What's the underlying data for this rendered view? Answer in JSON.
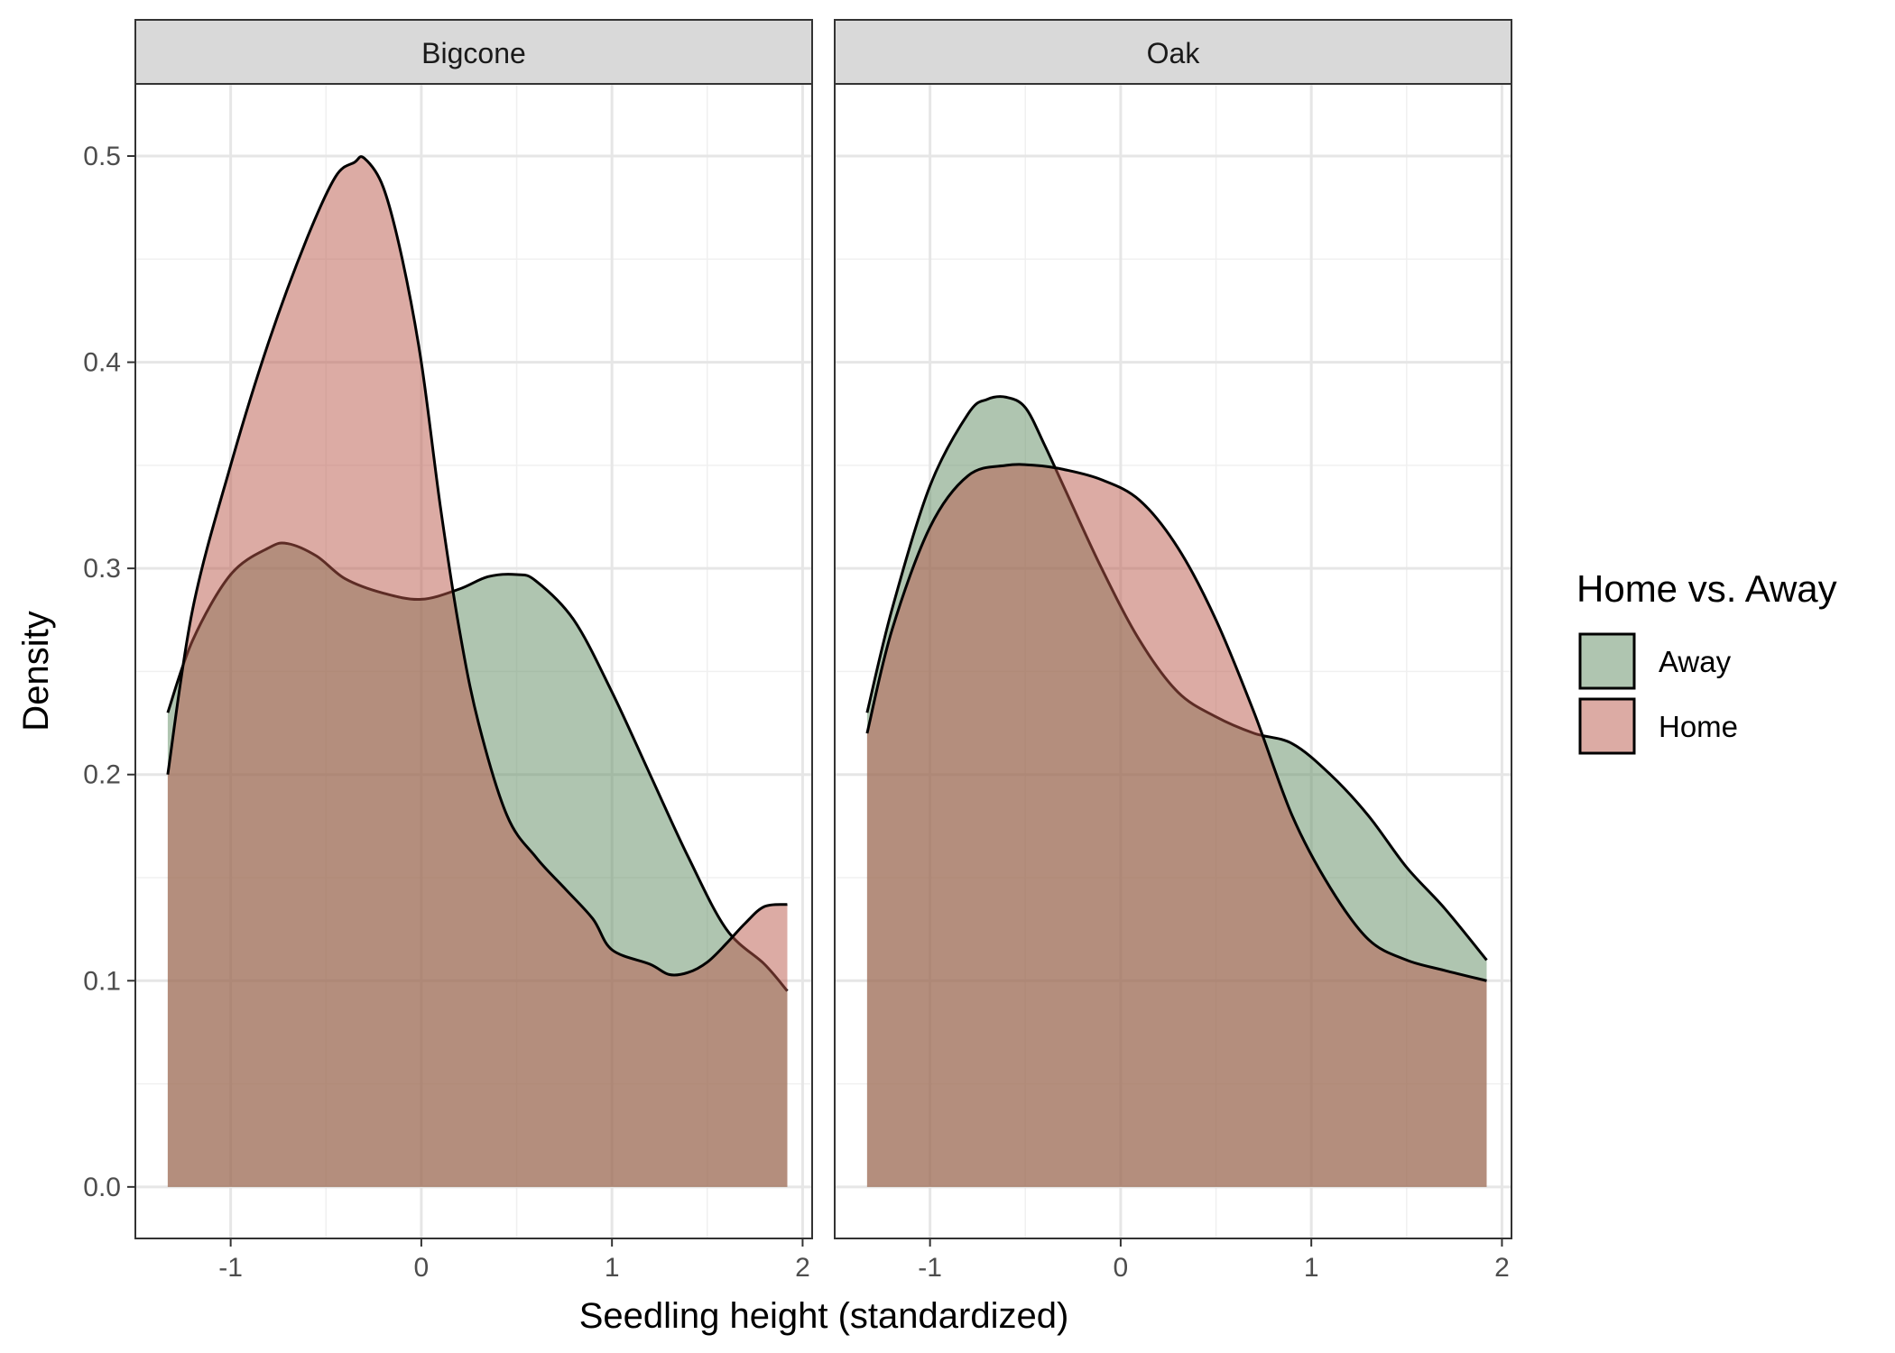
{
  "chart_data": {
    "type": "area",
    "subtype": "density",
    "xlabel": "Seedling height (standardized)",
    "ylabel": "Density",
    "xlim": [
      -1.5,
      2.05
    ],
    "ylim": [
      -0.025,
      0.535
    ],
    "x_ticks": [
      -1,
      0,
      1,
      2
    ],
    "x_tick_labels": [
      "-1",
      "0",
      "1",
      "2"
    ],
    "y_ticks": [
      0.0,
      0.1,
      0.2,
      0.3,
      0.4,
      0.5
    ],
    "y_tick_labels": [
      "0.0",
      "0.1",
      "0.2",
      "0.3",
      "0.4",
      "0.5"
    ],
    "grid": true,
    "legend": {
      "title": "Home vs. Away",
      "position": "right",
      "items": [
        {
          "label": "Away",
          "color": "#5f8c62"
        },
        {
          "label": "Home",
          "color": "#b9574a"
        }
      ]
    },
    "fill_alpha": 0.5,
    "panels": [
      {
        "strip": "Bigcone",
        "series": [
          {
            "name": "Away",
            "x": [
              -1.33,
              -1.2,
              -1.0,
              -0.8,
              -0.7,
              -0.55,
              -0.4,
              -0.2,
              0.0,
              0.2,
              0.35,
              0.5,
              0.6,
              0.8,
              1.0,
              1.2,
              1.4,
              1.6,
              1.8,
              1.92
            ],
            "y": [
              0.23,
              0.265,
              0.297,
              0.31,
              0.312,
              0.306,
              0.295,
              0.288,
              0.285,
              0.29,
              0.296,
              0.297,
              0.294,
              0.275,
              0.24,
              0.2,
              0.16,
              0.125,
              0.108,
              0.095
            ]
          },
          {
            "name": "Home",
            "x": [
              -1.33,
              -1.2,
              -1.0,
              -0.8,
              -0.6,
              -0.45,
              -0.35,
              -0.3,
              -0.2,
              -0.1,
              0.0,
              0.1,
              0.2,
              0.3,
              0.45,
              0.6,
              0.75,
              0.9,
              1.0,
              1.2,
              1.3,
              1.4,
              1.5,
              1.6,
              1.7,
              1.8,
              1.92
            ],
            "y": [
              0.2,
              0.28,
              0.35,
              0.41,
              0.46,
              0.49,
              0.497,
              0.499,
              0.485,
              0.45,
              0.4,
              0.33,
              0.27,
              0.225,
              0.18,
              0.16,
              0.145,
              0.13,
              0.115,
              0.108,
              0.103,
              0.104,
              0.109,
              0.118,
              0.128,
              0.136,
              0.137
            ]
          }
        ]
      },
      {
        "strip": "Oak",
        "series": [
          {
            "name": "Away",
            "x": [
              -1.33,
              -1.2,
              -1.0,
              -0.8,
              -0.7,
              -0.6,
              -0.5,
              -0.4,
              -0.3,
              -0.1,
              0.1,
              0.3,
              0.5,
              0.7,
              0.9,
              1.1,
              1.3,
              1.5,
              1.7,
              1.92
            ],
            "y": [
              0.23,
              0.28,
              0.34,
              0.375,
              0.382,
              0.383,
              0.378,
              0.36,
              0.34,
              0.3,
              0.265,
              0.24,
              0.228,
              0.22,
              0.215,
              0.2,
              0.18,
              0.155,
              0.135,
              0.11
            ]
          },
          {
            "name": "Home",
            "x": [
              -1.33,
              -1.2,
              -1.0,
              -0.8,
              -0.6,
              -0.45,
              -0.3,
              -0.1,
              0.1,
              0.3,
              0.5,
              0.7,
              0.9,
              1.1,
              1.3,
              1.5,
              1.7,
              1.92
            ],
            "y": [
              0.22,
              0.27,
              0.32,
              0.345,
              0.35,
              0.35,
              0.348,
              0.343,
              0.333,
              0.31,
              0.275,
              0.23,
              0.18,
              0.145,
              0.12,
              0.11,
              0.105,
              0.1
            ]
          }
        ]
      }
    ]
  }
}
